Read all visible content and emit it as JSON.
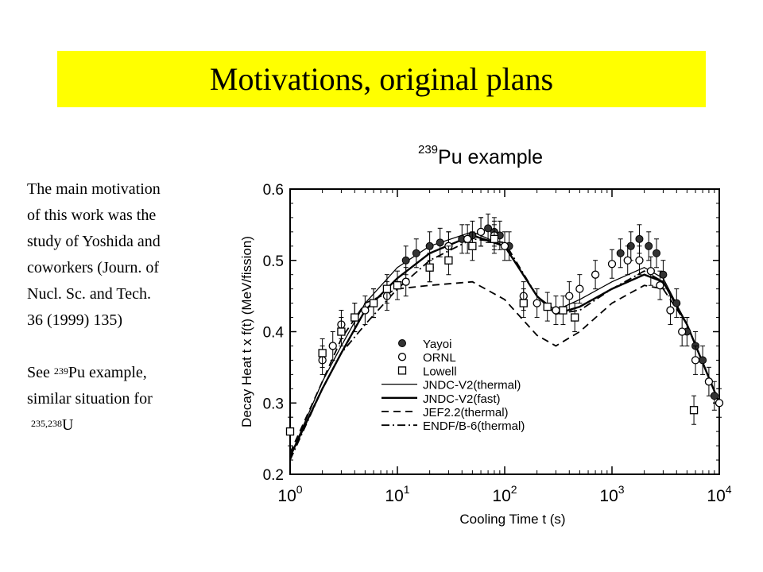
{
  "slide": {
    "title": "Motivations, original plans",
    "body_lines": [
      "The main motivation",
      "of this work was the",
      "study of Yoshida and",
      "coworkers (Journ. of",
      "Nucl. Sc. and Tech.",
      "36 (1999) 135)"
    ],
    "see_prefix": "See ",
    "see_sup": "239",
    "see_suffix": "Pu example,",
    "similar_line": "similar situation for",
    "u_sup": "235,238",
    "u_text": "U"
  },
  "chart_title": {
    "sup": "239",
    "text": "Pu example"
  },
  "chart_data": {
    "type": "line",
    "xscale": "log",
    "xlim": [
      1,
      10000
    ],
    "ylim": [
      0.2,
      0.6
    ],
    "x_ticks": [
      "10",
      "10",
      "10",
      "10",
      "10"
    ],
    "x_tick_exps": [
      "0",
      "1",
      "2",
      "3",
      "4"
    ],
    "y_ticks": [
      "0.2",
      "0.3",
      "0.4",
      "0.5",
      "0.6"
    ],
    "xlabel": "Cooling Time t (s)",
    "ylabel": "Decay Heat   t x f(t)   (MeV/fission)",
    "legend_position": "lower-left",
    "series": [
      {
        "name": "JNDC-V2(thermal)",
        "style": "solid-thin",
        "x": [
          1,
          2,
          3,
          5,
          10,
          20,
          50,
          100,
          200,
          300,
          500,
          1000,
          2000,
          3000,
          5000,
          10000
        ],
        "y": [
          0.225,
          0.33,
          0.38,
          0.44,
          0.49,
          0.52,
          0.54,
          0.52,
          0.45,
          0.43,
          0.445,
          0.47,
          0.49,
          0.475,
          0.41,
          0.3
        ]
      },
      {
        "name": "JNDC-V2(fast)",
        "style": "solid-thick",
        "x": [
          1,
          2,
          3,
          5,
          10,
          20,
          50,
          100,
          200,
          300,
          500,
          1000,
          2000,
          3000,
          5000,
          10000
        ],
        "y": [
          0.225,
          0.32,
          0.37,
          0.43,
          0.475,
          0.51,
          0.535,
          0.52,
          0.45,
          0.425,
          0.435,
          0.46,
          0.48,
          0.47,
          0.41,
          0.3
        ]
      },
      {
        "name": "JEF2.2(thermal)",
        "style": "dashed",
        "x": [
          1,
          2,
          3,
          5,
          10,
          20,
          50,
          100,
          200,
          300,
          500,
          1000,
          2000,
          3000,
          5000,
          10000
        ],
        "y": [
          0.23,
          0.33,
          0.39,
          0.44,
          0.46,
          0.465,
          0.47,
          0.445,
          0.395,
          0.38,
          0.4,
          0.44,
          0.465,
          0.46,
          0.41,
          0.3
        ]
      },
      {
        "name": "ENDF/B-6(thermal)",
        "style": "dash-dot",
        "x": [
          1,
          2,
          3,
          5,
          10,
          20,
          50,
          100,
          200,
          300,
          500,
          1000,
          2000,
          3000,
          5000,
          10000
        ],
        "y": [
          0.22,
          0.32,
          0.37,
          0.41,
          0.46,
          0.5,
          0.53,
          0.525,
          0.45,
          0.425,
          0.43,
          0.46,
          0.485,
          0.47,
          0.41,
          0.3
        ]
      },
      {
        "name": "Yayoi",
        "style": "filled-circle",
        "x": [
          12,
          15,
          20,
          25,
          30,
          40,
          50,
          60,
          70,
          80,
          90,
          110,
          1200,
          1500,
          1800,
          2200,
          2600,
          3000,
          4000,
          5000,
          6000,
          7000,
          9000
        ],
        "y": [
          0.5,
          0.51,
          0.52,
          0.525,
          0.52,
          0.53,
          0.535,
          0.54,
          0.545,
          0.54,
          0.535,
          0.52,
          0.51,
          0.52,
          0.53,
          0.52,
          0.51,
          0.48,
          0.44,
          0.4,
          0.38,
          0.36,
          0.31
        ]
      },
      {
        "name": "ORNL",
        "style": "open-circle",
        "x": [
          2,
          2.5,
          3,
          4,
          5,
          6,
          8,
          12,
          20,
          30,
          45,
          60,
          80,
          100,
          150,
          200,
          300,
          400,
          500,
          700,
          1000,
          1400,
          1800,
          2300,
          2800,
          3500,
          4500,
          6000,
          8000,
          10000
        ],
        "y": [
          0.36,
          0.38,
          0.41,
          0.42,
          0.43,
          0.44,
          0.45,
          0.47,
          0.49,
          0.52,
          0.53,
          0.54,
          0.535,
          0.52,
          0.45,
          0.44,
          0.43,
          0.45,
          0.46,
          0.48,
          0.495,
          0.5,
          0.5,
          0.485,
          0.465,
          0.43,
          0.4,
          0.36,
          0.33,
          0.3
        ]
      },
      {
        "name": "Lowell",
        "style": "open-square",
        "x": [
          1,
          2,
          3,
          4,
          6,
          8,
          10,
          20,
          30,
          50,
          80,
          150,
          250,
          350,
          450,
          5800
        ],
        "y": [
          0.26,
          0.37,
          0.4,
          0.42,
          0.44,
          0.46,
          0.465,
          0.49,
          0.5,
          0.52,
          0.53,
          0.44,
          0.435,
          0.43,
          0.42,
          0.29
        ]
      }
    ]
  }
}
